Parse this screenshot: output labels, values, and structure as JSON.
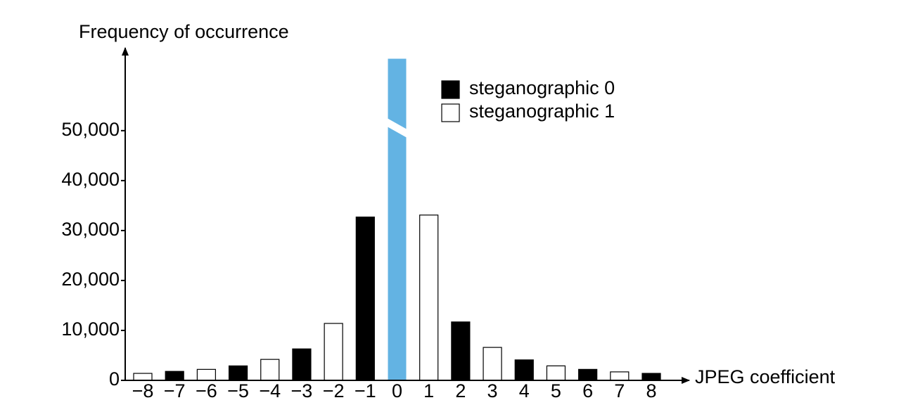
{
  "chart_data": {
    "type": "bar",
    "y_label": "Frequency of occurrence",
    "x_label": "JPEG coefficient",
    "categories": [
      "−8",
      "−7",
      "−6",
      "−5",
      "−4",
      "−3",
      "−2",
      "−1",
      "0",
      "1",
      "2",
      "3",
      "4",
      "5",
      "6",
      "7",
      "8"
    ],
    "series": [
      {
        "name": "steganographic 0",
        "color": "#000000",
        "values": [
          null,
          1800,
          null,
          2900,
          null,
          6300,
          null,
          32700,
          null,
          null,
          11700,
          null,
          4100,
          null,
          2200,
          null,
          1400
        ]
      },
      {
        "name": "steganographic 1",
        "color": "#ffffff",
        "values": [
          1400,
          null,
          2200,
          null,
          4200,
          null,
          11400,
          null,
          null,
          33100,
          null,
          6600,
          null,
          2900,
          null,
          1700,
          null
        ]
      },
      {
        "color": "#63b3e3",
        "broken": true,
        "values": [
          null,
          null,
          null,
          null,
          null,
          null,
          null,
          null,
          64400,
          null,
          null,
          null,
          null,
          null,
          null,
          null,
          null
        ]
      }
    ],
    "ylim": [
      0,
      65600
    ],
    "yticks": [
      0,
      {
        "value": 10000,
        "label": "10,000"
      },
      {
        "value": 20000,
        "label": "20,000"
      },
      {
        "value": 30000,
        "label": "30,000"
      },
      {
        "value": 40000,
        "label": "40,000"
      },
      {
        "value": 50000,
        "label": "50,000"
      }
    ],
    "legend": "top-right"
  }
}
